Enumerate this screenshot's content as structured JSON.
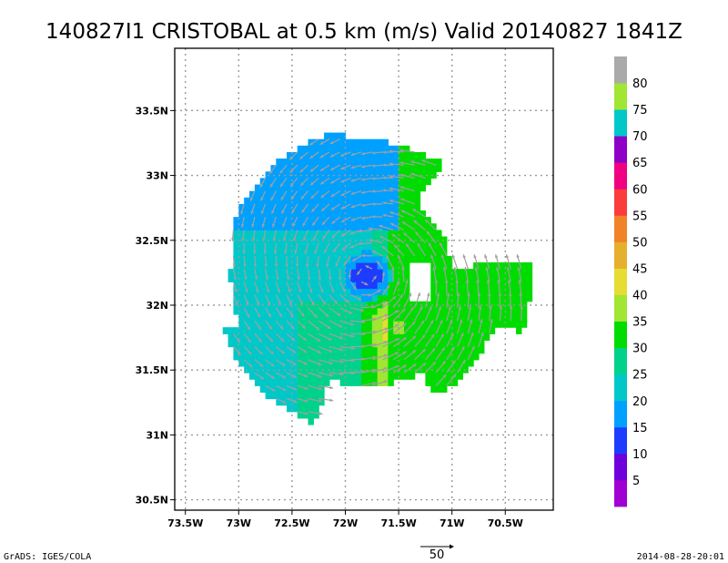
{
  "chart_data": {
    "type": "heatmap",
    "title": "140827I1 CRISTOBAL at 0.5 km (m/s) Valid 20140827 1841Z",
    "xlabel": "",
    "ylabel": "",
    "xlim": [
      -73.6,
      -70.05
    ],
    "ylim": [
      30.42,
      33.98
    ],
    "x_ticks": [
      {
        "value": -73.5,
        "label": "73.5W"
      },
      {
        "value": -73.0,
        "label": "73W"
      },
      {
        "value": -72.5,
        "label": "72.5W"
      },
      {
        "value": -72.0,
        "label": "72W"
      },
      {
        "value": -71.5,
        "label": "71.5W"
      },
      {
        "value": -71.0,
        "label": "71W"
      },
      {
        "value": -70.5,
        "label": "70.5W"
      }
    ],
    "y_ticks": [
      {
        "value": 30.5,
        "label": "30.5N"
      },
      {
        "value": 31.0,
        "label": "31N"
      },
      {
        "value": 31.5,
        "label": "31.5N"
      },
      {
        "value": 32.0,
        "label": "32N"
      },
      {
        "value": 32.5,
        "label": "32.5N"
      },
      {
        "value": 33.0,
        "label": "33N"
      },
      {
        "value": 33.5,
        "label": "33.5N"
      }
    ],
    "grid": true,
    "storm_center": {
      "lon": -71.8,
      "lat": 32.23
    },
    "speed_field": {
      "outer_speed": 21,
      "eye_speed": 10,
      "ring_peak_speed": 22,
      "east_speed": 31,
      "southeast_peak_speed": 36,
      "southeast_peak_location": {
        "lon": -71.5,
        "lat": 31.85
      },
      "west_speed": 20
    },
    "colorbar": {
      "labels": [
        "5",
        "10",
        "15",
        "20",
        "25",
        "30",
        "35",
        "40",
        "45",
        "50",
        "55",
        "60",
        "65",
        "70",
        "75",
        "80"
      ],
      "bins": [
        {
          "min": 0,
          "max": 5,
          "color": "#a000d2"
        },
        {
          "min": 5,
          "max": 10,
          "color": "#6e00dc"
        },
        {
          "min": 10,
          "max": 15,
          "color": "#1e3cff"
        },
        {
          "min": 15,
          "max": 20,
          "color": "#00a0ff"
        },
        {
          "min": 20,
          "max": 25,
          "color": "#00c8c8"
        },
        {
          "min": 25,
          "max": 30,
          "color": "#00d28c"
        },
        {
          "min": 30,
          "max": 35,
          "color": "#00dc00"
        },
        {
          "min": 35,
          "max": 40,
          "color": "#a0e632"
        },
        {
          "min": 40,
          "max": 45,
          "color": "#e6dc32"
        },
        {
          "min": 45,
          "max": 50,
          "color": "#e6af2d"
        },
        {
          "min": 50,
          "max": 55,
          "color": "#f08228"
        },
        {
          "min": 55,
          "max": 60,
          "color": "#fa3c3c"
        },
        {
          "min": 60,
          "max": 65,
          "color": "#f00082"
        },
        {
          "min": 65,
          "max": 70,
          "color": "#8c00c8"
        },
        {
          "min": 70,
          "max": 75,
          "color": "#00c8c8"
        },
        {
          "min": 75,
          "max": 80,
          "color": "#a0e632"
        },
        {
          "min": 80,
          "max": 85,
          "color": "#aaaaaa"
        }
      ]
    },
    "reference_vector": {
      "label": "50",
      "value": 50
    },
    "vector_color": "#a0a0a0"
  },
  "footer": {
    "left": "GrADS: IGES/COLA",
    "right": "2014-08-28-20:01"
  }
}
